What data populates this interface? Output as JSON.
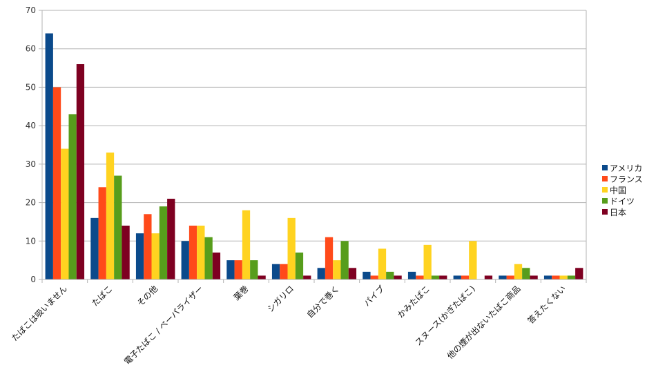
{
  "chart_data": {
    "type": "bar",
    "categories": [
      "たばこは吸いません",
      "たばこ",
      "その他",
      "電子たばこ / ベーパライザー",
      "葉巻",
      "シガリロ",
      "自分で巻く",
      "パイプ",
      "かみたばこ",
      "スヌース(かぎたばこ)",
      "他の煙が出ないたばこ商品",
      "答えたくない"
    ],
    "series": [
      {
        "name": "アメリカ",
        "color": "#0b4a8b",
        "values": [
          64,
          16,
          12,
          10,
          5,
          4,
          3,
          2,
          2,
          1,
          1,
          1
        ]
      },
      {
        "name": "フランス",
        "color": "#ff4a1a",
        "values": [
          50,
          24,
          17,
          14,
          5,
          4,
          11,
          1,
          1,
          1,
          1,
          1
        ]
      },
      {
        "name": "中国",
        "color": "#ffd320",
        "values": [
          34,
          33,
          12,
          14,
          18,
          16,
          5,
          8,
          9,
          10,
          4,
          1
        ]
      },
      {
        "name": "ドイツ",
        "color": "#579d1c",
        "values": [
          43,
          27,
          19,
          11,
          5,
          7,
          10,
          2,
          1,
          0,
          3,
          1
        ]
      },
      {
        "name": "日本",
        "color": "#7e0021",
        "values": [
          56,
          14,
          21,
          7,
          1,
          1,
          3,
          1,
          1,
          1,
          1,
          3
        ]
      }
    ],
    "ylim": [
      0,
      70
    ],
    "yticks": [
      0,
      10,
      20,
      30,
      40,
      50,
      60,
      70
    ],
    "grid": true,
    "legend_position": "right",
    "title": "",
    "xlabel": "",
    "ylabel": ""
  }
}
